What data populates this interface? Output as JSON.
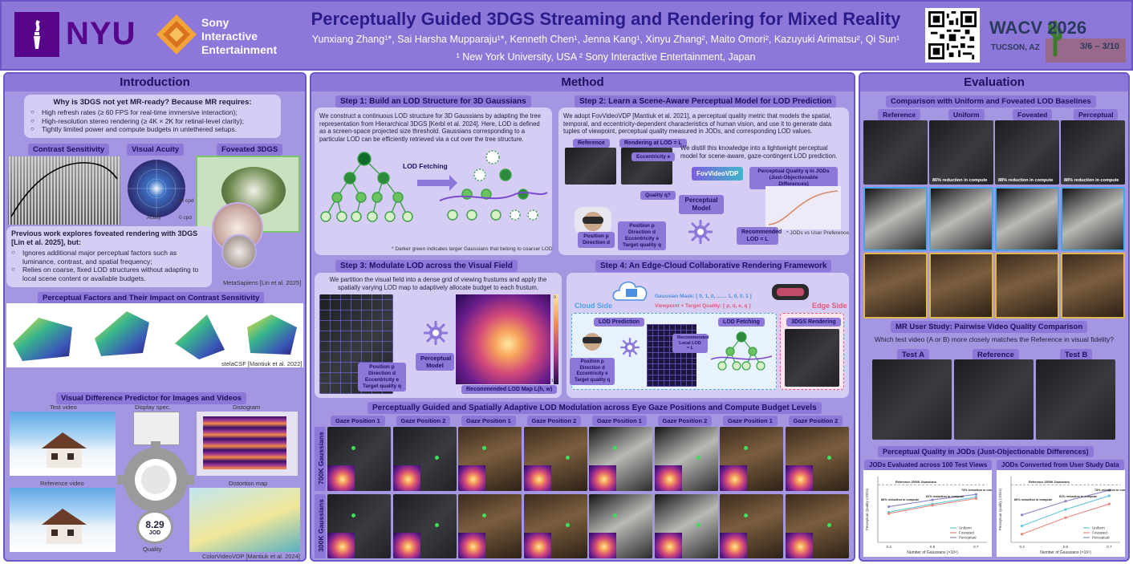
{
  "header": {
    "title": "Perceptually Guided 3DGS Streaming and Rendering for Mixed Reality",
    "authors": "Yunxiang Zhang¹*, Sai Harsha Mupparaju¹*, Kenneth Chen¹, Jenna Kang¹, Xinyu Zhang², Maito Omori², Kazuyuki Arimatsu², Qi Sun¹",
    "affiliations": "¹ New York University, USA    ² Sony Interactive Entertainment, Japan",
    "nyu_logo_text": "NYU",
    "sony_text": [
      "Sony",
      "Interactive",
      "Entertainment"
    ],
    "conference": "WACV 2026",
    "conference_location": "TUCSON, AZ",
    "conference_dates": "3/6 – 3/10"
  },
  "intro": {
    "title": "Introduction",
    "question": "Why is 3DGS not yet MR-ready? Because MR requires:",
    "requirements": [
      "High refresh rates (≥ 60 FPS for real-time immersive interaction);",
      "High-resolution stereo rendering (≥ 4K × 2K for retinal-level clarity);",
      "Tightly limited power and compute budgets in untethered setups."
    ],
    "chips": [
      "Contrast Sensitivity",
      "Visual Acuity",
      "Foveated 3DGS"
    ],
    "acuity_labels": [
      "Acuity",
      "0 cpd",
      "40 cpd",
      "Fovea"
    ],
    "previous_work": "Previous work explores foveated rendering with 3DGS [Lin et al. 2025], but:",
    "limitations": [
      "Ignores additional major perceptual factors such as luminance, contrast, and spatial frequency;",
      "Relies on coarse, fixed LOD structures without adapting to local scene content or available budgets."
    ],
    "metasapiens": "MetaSapiens [Lin et al. 2025]",
    "factors_title": "Perceptual Factors and Their Impact on Contrast Sensitivity",
    "stelacsf": "stelaCSF [Mantiuk et al. 2022]",
    "vdp_title": "Visual Difference Predictor for Images and Videos",
    "vdp_labels": [
      "Test video",
      "Display spec.",
      "Distogram",
      "Reference video",
      "Distortion map"
    ],
    "jod_value": "8.29",
    "jod_unit": "JOD",
    "quality_label": "Quality",
    "colorvideovdp": "ColorVideoVDP [Mantiuk et al. 2024]"
  },
  "method": {
    "title": "Method",
    "step1_title": "Step 1: Build an LOD Structure for 3D Gaussians",
    "step1_text": "We construct a continuous LOD structure for 3D Gaussians by adapting the tree representation from Hierarchical 3DGS [Kerbl et al. 2024]. Here, LOD is defined as a screen-space projected size threshold. Gaussians corresponding to a particular LOD can be efficiently retrieved via a cut over the tree structure.",
    "lod_fetching": "LOD Fetching",
    "step1_note": "* Darker green indicates larger Gaussians that belong to coarser LOD",
    "step2_title": "Step 2: Learn a Scene-Aware Perceptual Model for LOD Prediction",
    "step2_text": "We adopt FovVideoVDP [Mantiuk et al. 2021], a perceptual quality metric that models the spatial, temporal, and eccentricity-dependent characteristics of human vision, and use it to generate data tuples of viewpoint, perceptual quality measured in JODs, and corresponding LOD values.",
    "step2_distill": "We distill this knowledge into a lightweight perceptual model for scene-aware, gaze-contingent LOD prediction.",
    "step2_labels": {
      "reference": "Reference",
      "rendering": "Rendering at LOD = L",
      "eccentricity": "Eccentricity e",
      "quality": "Quality q?",
      "fovvideovdp": "FovVideoVDP",
      "pq_jod": "Perceptual Quality q in JODs",
      "pq_jod_sub": "(Just-Objectionable Differences)",
      "position_direction": "Position p  Direction d",
      "inputs": [
        "Position p",
        "Direction d",
        "Eccentricity e",
        "Target quality q"
      ],
      "perceptual_model": "Perceptual Model",
      "recommended": "Recommended LOD = L",
      "jod_note": "* JODs vs User Preference"
    },
    "step3_title": "Step 3: Modulate LOD across the Visual Field",
    "step3_text": "We partition the visual field into a dense grid of viewing frustums and apply the spatially varying LOD map to adaptively allocate budget to each frustum.",
    "step3_inputs": [
      "Position p",
      "Direction d",
      "Eccentricity e",
      "Target quality q"
    ],
    "step3_model": "Perceptual Model",
    "step3_map": "Recommended LOD Map L(h, w)",
    "colorbar_top": "0",
    "colorbar_bottom": "100",
    "step4_title": "Step 4: An Edge-Cloud Collaborative Rendering Framework",
    "cloud_side": "Cloud Side",
    "edge_side": "Edge Side",
    "gaussian_mask": "Gaussian Mask: [ 0, 1, 0, ....... 1, 0, 0, 1 ]",
    "viewpoint_quality": "Viewpoint + Target Quality: [ p, d, e, q ]",
    "lod_prediction": "LOD Prediction",
    "lod_fetching2": "LOD Fetching",
    "rendering_3dgs": "3DGS Rendering",
    "recommended_local": "Recommended Local LOD = L",
    "step4_inputs": [
      "Position p",
      "Direction d",
      "Eccentricity e",
      "Target quality q"
    ],
    "results_title": "Perceptually Guided and Spatially Adaptive LOD Modulation across Eye Gaze Positions and Compute Budget Levels",
    "gaze_labels": [
      "Gaze Position 1",
      "Gaze Position 2",
      "Gaze Position 1",
      "Gaze Position 2",
      "Gaze Position 1",
      "Gaze Position 2",
      "Gaze Position 1",
      "Gaze Position 2"
    ],
    "row_labels": [
      "700K Gaussians",
      "300K Gaussians"
    ]
  },
  "evaluation": {
    "title": "Evaluation",
    "comparison_title": "Comparison with Uniform and Foveated LOD Baselines",
    "columns": [
      "Reference",
      "Uniform",
      "Foveated",
      "Perceptual"
    ],
    "reduction": [
      "86% reduction in compute",
      "88% reduction in compute",
      "88% reduction in compute"
    ],
    "user_study_title": "MR User Study: Pairwise Video Quality Comparison",
    "user_study_question": "Which test video (A or B) more closely matches the Reference in visual fidelity?",
    "user_study_columns": [
      "Test A",
      "Reference",
      "Test B"
    ],
    "jod_title": "Perceptual Quality in JODs (Just-Objectionable Differences)",
    "chart_titles": [
      "JODs Evaluated across 100 Test Views",
      "JODs Converted from User Study Data"
    ],
    "chart_annotations": {
      "left": [
        "Reference 2500K Gaussians",
        "86% reduction in compute",
        "81% reduction in compute",
        "73% reduction in compute"
      ],
      "right": [
        "Reference 2500K Gaussians",
        "86% reduction in compute",
        "81% reduction in compute",
        "73% reduction in compute"
      ]
    }
  },
  "chart_data": [
    {
      "type": "line",
      "title": "JODs Evaluated across 100 Test Views",
      "xlabel": "Number of Gaussians (×10⁶)",
      "ylabel": "Perceptual Quality (JODs)",
      "x": [
        0.3,
        0.5,
        0.7
      ],
      "series": [
        {
          "name": "Uniform",
          "values": [
            8.9,
            9.2,
            9.45
          ],
          "color": "#5ec6d8"
        },
        {
          "name": "Foveated",
          "values": [
            8.85,
            9.15,
            9.4
          ],
          "color": "#e7867a"
        },
        {
          "name": "Perceptual",
          "values": [
            9.1,
            9.35,
            9.55
          ],
          "color": "#8b83c8"
        }
      ],
      "reference": 9.9
    },
    {
      "type": "line",
      "title": "JODs Converted from User Study Data",
      "xlabel": "Number of Gaussians (×10⁶)",
      "ylabel": "Perceptual Quality (JODs)",
      "x": [
        0.3,
        0.5,
        0.7
      ],
      "series": [
        {
          "name": "Uniform",
          "values": [
            8.4,
            9.0,
            9.5
          ],
          "color": "#5ec6d8"
        },
        {
          "name": "Foveated",
          "values": [
            8.1,
            8.7,
            9.2
          ],
          "color": "#e7867a"
        },
        {
          "name": "Perceptual",
          "values": [
            8.8,
            9.3,
            9.7
          ],
          "color": "#8b83c8"
        }
      ],
      "reference": 9.9
    }
  ]
}
